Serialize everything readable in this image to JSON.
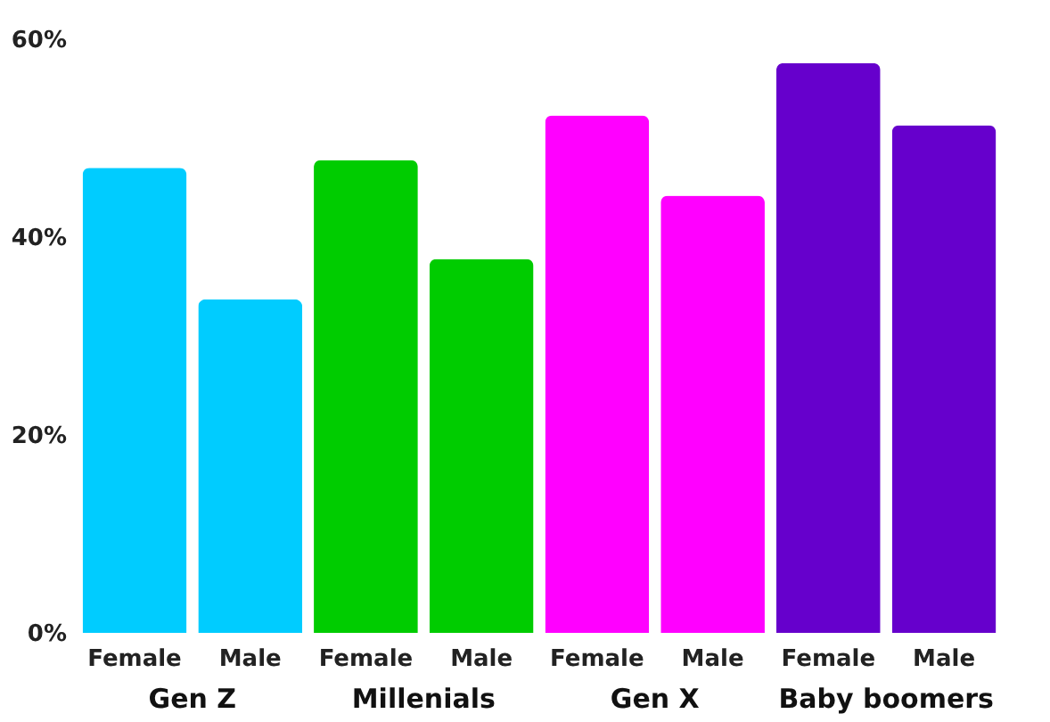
{
  "chart_data": {
    "type": "bar",
    "categories": [
      "Female",
      "Male",
      "Female",
      "Male",
      "Female",
      "Male",
      "Female",
      "Male"
    ],
    "values": [
      47.0,
      33.7,
      47.8,
      37.8,
      52.3,
      44.2,
      57.6,
      51.3
    ],
    "colors": [
      "#00ccff",
      "#00ccff",
      "#00cc00",
      "#00cc00",
      "#ff00ff",
      "#ff00ff",
      "#6600cc",
      "#6600cc"
    ],
    "annotations": [
      "Gen Z",
      "Millenials",
      "Gen X",
      "Baby boomers"
    ],
    "ylim": [
      0,
      60
    ],
    "yticks": [
      {
        "value": 0,
        "label": "0%"
      },
      {
        "value": 20,
        "label": "20%"
      },
      {
        "value": 40,
        "label": "40%"
      },
      {
        "value": 60,
        "label": "60%"
      }
    ],
    "grid": false
  }
}
